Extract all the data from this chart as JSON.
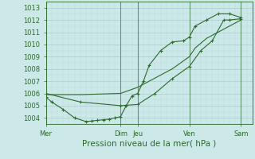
{
  "bg_color": "#cce8e8",
  "grid_color": "#b0d4d4",
  "line_color": "#2d6a2d",
  "ylim": [
    1003.5,
    1013.5
  ],
  "yticks": [
    1004,
    1005,
    1006,
    1007,
    1008,
    1009,
    1010,
    1011,
    1012,
    1013
  ],
  "xlabel": "Pression niveau de la mer( hPa )",
  "day_labels": [
    "Mer",
    "Dim",
    "Jeu",
    "Ven",
    "Sam"
  ],
  "day_positions": [
    0,
    6.5,
    8.0,
    12.5,
    17.0
  ],
  "xlim": [
    0,
    18
  ],
  "vline_positions": [
    0,
    6.5,
    8.0,
    12.5,
    17.0
  ],
  "line1_x": [
    0,
    0.5,
    1.5,
    2.5,
    3.5,
    4.0,
    4.5,
    5.0,
    5.5,
    6.0,
    6.5,
    7.0,
    7.5,
    8.0,
    8.5,
    9.0,
    10.0,
    11.0,
    12.0,
    12.5,
    13.0,
    14.0,
    15.0,
    16.0,
    17.0
  ],
  "line1_y": [
    1005.7,
    1005.3,
    1004.7,
    1004.0,
    1003.7,
    1003.75,
    1003.8,
    1003.85,
    1003.9,
    1004.0,
    1004.1,
    1005.0,
    1005.8,
    1006.0,
    1007.0,
    1008.3,
    1009.5,
    1010.2,
    1010.3,
    1010.6,
    1011.5,
    1012.0,
    1012.5,
    1012.5,
    1012.2
  ],
  "line2_x": [
    0,
    3.0,
    6.5,
    8.0,
    9.0,
    10.0,
    11.0,
    12.5,
    13.0,
    14.0,
    15.0,
    16.0,
    17.0
  ],
  "line2_y": [
    1005.9,
    1005.9,
    1006.0,
    1006.5,
    1007.0,
    1007.5,
    1008.0,
    1009.0,
    1009.7,
    1010.5,
    1011.0,
    1011.5,
    1012.0
  ],
  "line3_x": [
    0,
    3.0,
    6.5,
    8.0,
    9.5,
    11.0,
    12.5,
    13.5,
    14.5,
    15.5,
    16.0,
    17.0
  ],
  "line3_y": [
    1006.0,
    1005.3,
    1005.0,
    1005.1,
    1006.0,
    1007.2,
    1008.2,
    1009.5,
    1010.3,
    1012.0,
    1012.0,
    1012.1
  ],
  "tick_fontsize": 6,
  "xlabel_fontsize": 7.5
}
